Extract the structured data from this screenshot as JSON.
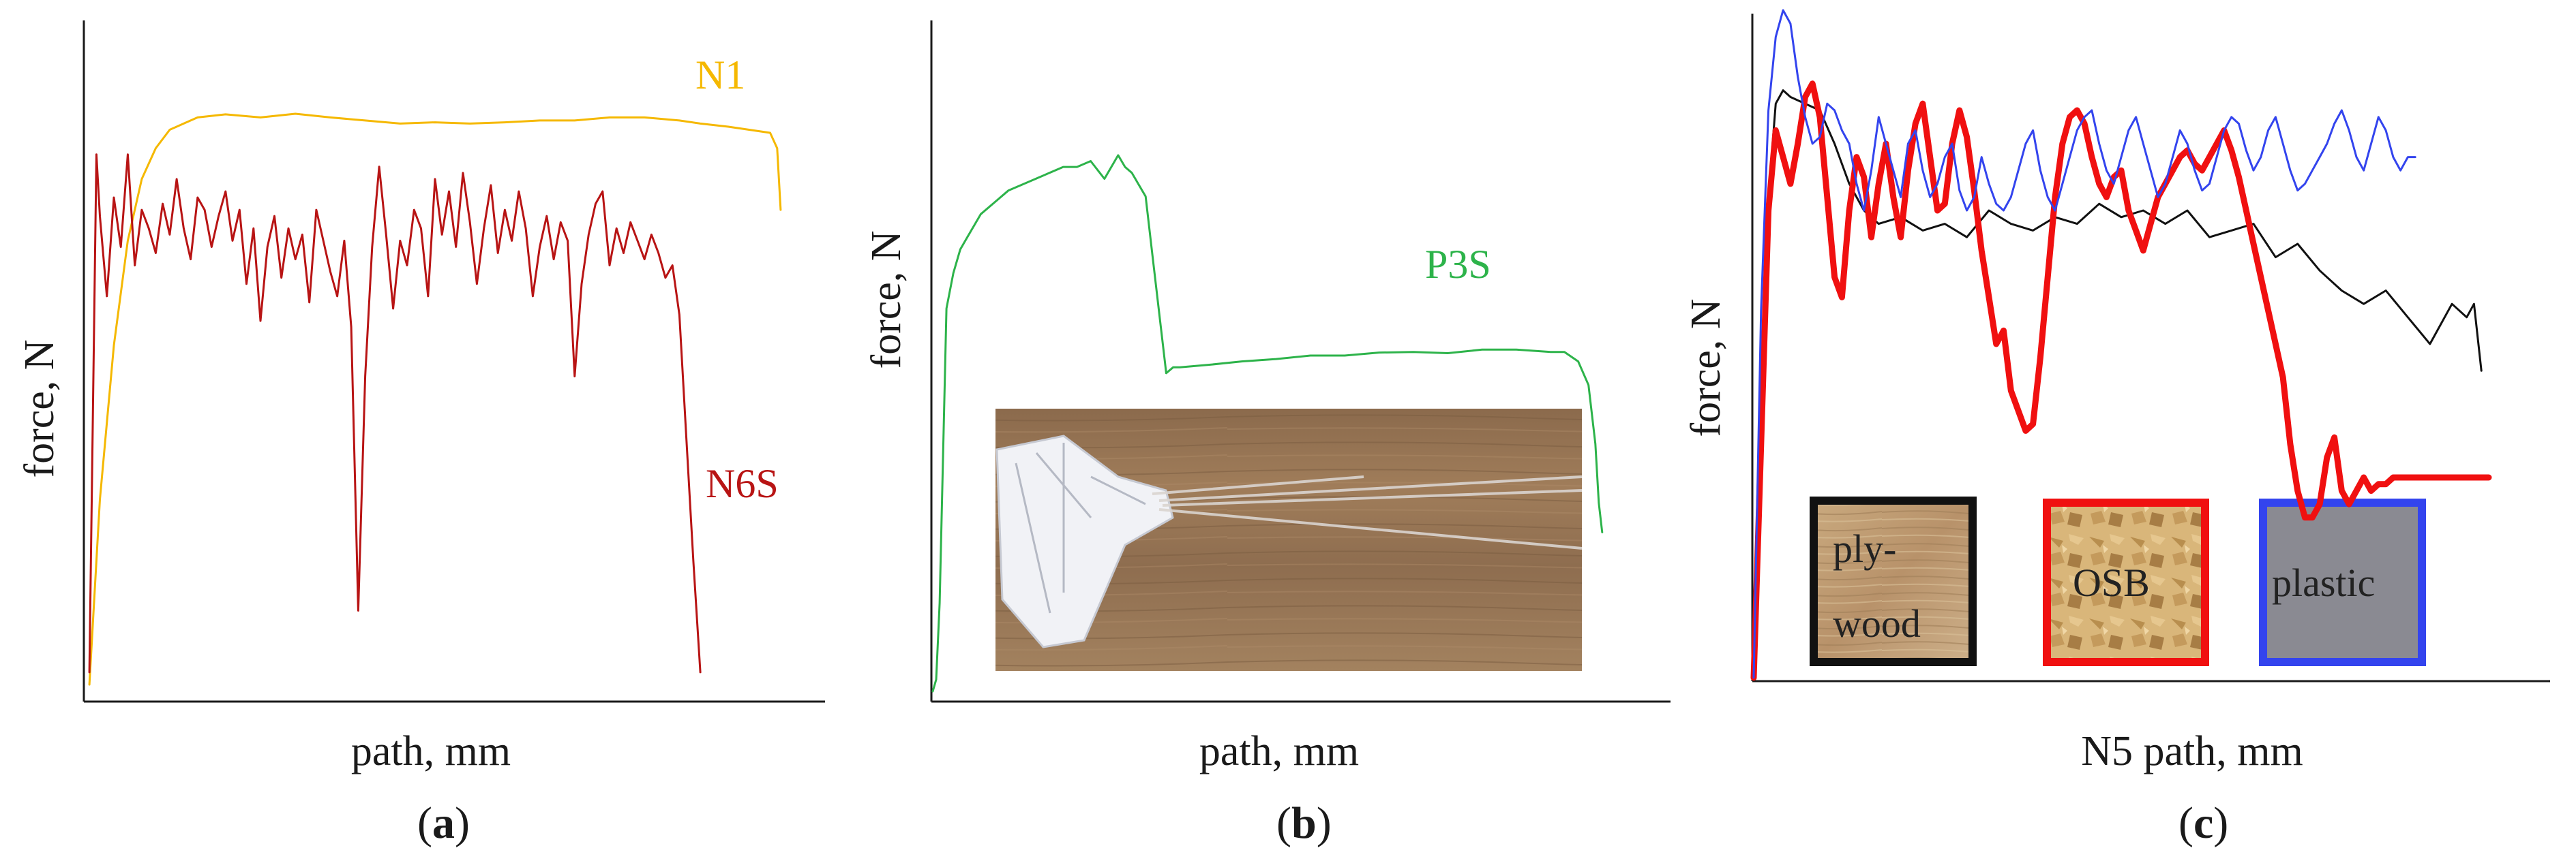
{
  "chart_data": [
    {
      "panel_id": "a",
      "panel_tag": "a",
      "type": "line",
      "xlabel": "path, mm",
      "ylabel": "force, N",
      "xlim": [
        0,
        100
      ],
      "ylim": [
        0,
        100
      ],
      "ticks": "none",
      "series": [
        {
          "name": "N1",
          "color": "#F5B800",
          "x": [
            0.5,
            2,
            4,
            6,
            8,
            10,
            12,
            14,
            16,
            20,
            25,
            30,
            35,
            40,
            45,
            50,
            55,
            60,
            65,
            70,
            75,
            80,
            85,
            88,
            92,
            95,
            98,
            99,
            99.5
          ],
          "y": [
            0,
            30,
            55,
            72,
            82,
            87,
            90,
            91,
            92,
            92.5,
            92,
            92.6,
            92,
            91.5,
            91,
            91.2,
            91,
            91.2,
            91.5,
            91.5,
            92,
            92,
            91.5,
            91,
            90.5,
            90,
            89.5,
            87,
            77
          ]
        },
        {
          "name": "N6S",
          "color": "#B81414",
          "x": [
            0.5,
            1.5,
            2,
            3,
            4,
            5,
            6,
            7,
            8,
            9,
            10,
            11,
            12,
            13,
            14,
            15,
            16,
            17,
            18,
            19,
            20,
            21,
            22,
            23,
            24,
            25,
            26,
            27,
            28,
            29,
            30,
            31,
            32,
            33,
            34,
            35,
            36,
            37,
            38,
            39,
            40,
            41,
            42,
            43,
            44,
            45,
            46,
            47,
            48,
            49,
            50,
            51,
            52,
            53,
            54,
            55,
            56,
            57,
            58,
            59,
            60,
            61,
            62,
            63,
            64,
            65,
            66,
            67,
            68,
            69,
            70,
            71,
            72,
            73,
            74,
            75,
            76,
            77,
            78,
            79,
            80,
            81,
            82,
            83,
            84,
            85,
            86,
            87,
            88
          ],
          "y": [
            2,
            86,
            76,
            63,
            79,
            71,
            86,
            68,
            77,
            74,
            70,
            78,
            73,
            82,
            74,
            69,
            79,
            77,
            71,
            76,
            80,
            72,
            77,
            65,
            74,
            59,
            71,
            76,
            66,
            74,
            69,
            73,
            62,
            77,
            72,
            67,
            63,
            72,
            58,
            12,
            50,
            71,
            84,
            73,
            61,
            72,
            68,
            77,
            74,
            63,
            82,
            73,
            80,
            71,
            83,
            75,
            65,
            74,
            81,
            70,
            77,
            72,
            80,
            74,
            63,
            71,
            76,
            69,
            75,
            72,
            50,
            65,
            73,
            78,
            80,
            68,
            74,
            70,
            75,
            72,
            69,
            73,
            70,
            66,
            68,
            60,
            40,
            20,
            2
          ]
        }
      ]
    },
    {
      "panel_id": "b",
      "panel_tag": "b",
      "type": "line",
      "xlabel": "path, mm",
      "ylabel": "force, N",
      "xlim": [
        0,
        100
      ],
      "ylim": [
        0,
        100
      ],
      "ticks": "none",
      "series": [
        {
          "name": "P3S",
          "color": "#2DB34A",
          "x": [
            0,
            0.5,
            1,
            1.5,
            2,
            3,
            4,
            5,
            7,
            9,
            11,
            13,
            15,
            17,
            19,
            21,
            23,
            25,
            27,
            28,
            29,
            30,
            31,
            32,
            33,
            34,
            35,
            36,
            40,
            45,
            50,
            55,
            60,
            65,
            70,
            75,
            80,
            85,
            90,
            92,
            94,
            95.5,
            96.5,
            97,
            97.5
          ],
          "y": [
            0,
            2,
            15,
            40,
            65,
            71,
            75,
            77,
            81,
            83,
            85,
            86,
            87,
            88,
            89,
            89,
            90,
            87,
            91,
            89,
            88,
            86,
            84,
            74,
            64,
            54,
            55,
            55,
            55.4,
            56,
            56.4,
            57,
            57,
            57.5,
            57.6,
            57.4,
            58,
            58,
            57.6,
            57.6,
            56,
            52,
            42,
            32,
            27
          ]
        }
      ],
      "inset_photo": "copper wires pulled from folded sheet on wooden surface"
    },
    {
      "panel_id": "c",
      "panel_tag": "c",
      "type": "line",
      "xlabel": "N5 path, mm",
      "ylabel": "force, N",
      "xlim": [
        0,
        100
      ],
      "ylim": [
        0,
        100
      ],
      "ticks": "none",
      "series": [
        {
          "name": "plywood",
          "color": "#111111",
          "x": [
            0,
            1,
            2,
            3,
            4,
            5,
            7,
            9,
            11,
            13,
            15,
            17,
            20,
            23,
            26,
            29,
            32,
            35,
            38,
            41,
            44,
            47,
            50,
            53,
            56,
            59,
            62,
            65,
            68,
            71,
            74,
            77,
            80,
            83,
            86,
            89,
            92,
            95,
            97,
            98,
            99
          ],
          "y": [
            0,
            40,
            72,
            86,
            88,
            87,
            86,
            85,
            80,
            74,
            70,
            68,
            69,
            67,
            68,
            66,
            70,
            68,
            67,
            69,
            68,
            71,
            69,
            70,
            68,
            70,
            66,
            67,
            68,
            63,
            65,
            61,
            58,
            56,
            58,
            54,
            50,
            56,
            54,
            56,
            46
          ]
        },
        {
          "name": "OSB",
          "color": "#F01010",
          "x": [
            0,
            1,
            2,
            3,
            4,
            5,
            6,
            7,
            8,
            9,
            10,
            11,
            12,
            13,
            14,
            15,
            16,
            17,
            18,
            19,
            20,
            21,
            22,
            23,
            24,
            25,
            26,
            27,
            28,
            29,
            30,
            31,
            32,
            33,
            34,
            35,
            36,
            37,
            38,
            39,
            40,
            41,
            42,
            43,
            44,
            45,
            46,
            47,
            48,
            49,
            50,
            51,
            52,
            53,
            54,
            55,
            56,
            57,
            58,
            59,
            60,
            61,
            62,
            63,
            64,
            65,
            66,
            67,
            68,
            69,
            70,
            71,
            72,
            73,
            74,
            75,
            76,
            77,
            78,
            79,
            80,
            81,
            82,
            83,
            84,
            85,
            86,
            87,
            88,
            89,
            90,
            91,
            92,
            93,
            94,
            95,
            96,
            97,
            98,
            99,
            100
          ],
          "y": [
            0,
            35,
            70,
            82,
            78,
            74,
            80,
            87,
            89,
            84,
            72,
            60,
            57,
            70,
            78,
            75,
            66,
            74,
            80,
            72,
            66,
            76,
            83,
            86,
            78,
            70,
            71,
            80,
            85,
            81,
            73,
            64,
            57,
            50,
            52,
            43,
            40,
            37,
            38,
            48,
            60,
            72,
            80,
            84,
            85,
            83,
            78,
            74,
            72,
            75,
            76,
            70,
            67,
            64,
            68,
            72,
            74,
            76,
            78,
            79,
            77,
            76,
            78,
            80,
            82,
            79,
            75,
            70,
            65,
            60,
            55,
            50,
            45,
            35,
            28,
            24,
            24,
            26,
            33,
            36,
            28,
            26,
            28,
            30,
            28,
            29,
            29,
            30,
            30,
            30,
            30,
            30,
            30,
            30,
            30,
            30,
            30,
            30,
            30,
            30,
            30
          ]
        },
        {
          "name": "plastic",
          "color": "#3344EE",
          "x": [
            0,
            1,
            2,
            3,
            4,
            5,
            6,
            7,
            8,
            9,
            10,
            11,
            12,
            13,
            14,
            15,
            16,
            17,
            18,
            19,
            20,
            21,
            22,
            23,
            24,
            25,
            26,
            27,
            28,
            29,
            30,
            31,
            32,
            33,
            34,
            35,
            36,
            37,
            38,
            39,
            40,
            41,
            42,
            43,
            44,
            45,
            46,
            47,
            48,
            49,
            50,
            51,
            52,
            53,
            54,
            55,
            56,
            57,
            58,
            59,
            60,
            61,
            62,
            63,
            64,
            65,
            66,
            67,
            68,
            69,
            70,
            71,
            72,
            73,
            74,
            75,
            76,
            77,
            78,
            79,
            80,
            81,
            82,
            83,
            84,
            85,
            86,
            87,
            88,
            89,
            90
          ],
          "y": [
            0,
            55,
            85,
            96,
            100,
            98,
            90,
            84,
            80,
            81,
            86,
            85,
            82,
            80,
            74,
            70,
            76,
            84,
            80,
            76,
            72,
            80,
            82,
            76,
            72,
            74,
            78,
            80,
            73,
            70,
            72,
            78,
            74,
            71,
            70,
            72,
            76,
            80,
            82,
            76,
            72,
            70,
            74,
            78,
            82,
            84,
            85,
            80,
            76,
            74,
            78,
            82,
            84,
            80,
            76,
            72,
            74,
            78,
            82,
            80,
            76,
            73,
            74,
            78,
            82,
            84,
            83,
            79,
            76,
            78,
            82,
            84,
            80,
            76,
            73,
            74,
            76,
            78,
            80,
            83,
            85,
            82,
            78,
            76,
            80,
            84,
            82,
            78,
            76,
            78,
            78
          ]
        }
      ],
      "legend": {
        "placement": "bottom-inside",
        "items": [
          {
            "label": "ply-\nwood",
            "border_color": "#111111",
            "fill": "wood-texture-plywood"
          },
          {
            "label": "OSB",
            "border_color": "#F01010",
            "fill": "wood-texture-osb"
          },
          {
            "label": "plastic",
            "border_color": "#3344EE",
            "fill": "#8A8A92"
          }
        ]
      }
    }
  ]
}
